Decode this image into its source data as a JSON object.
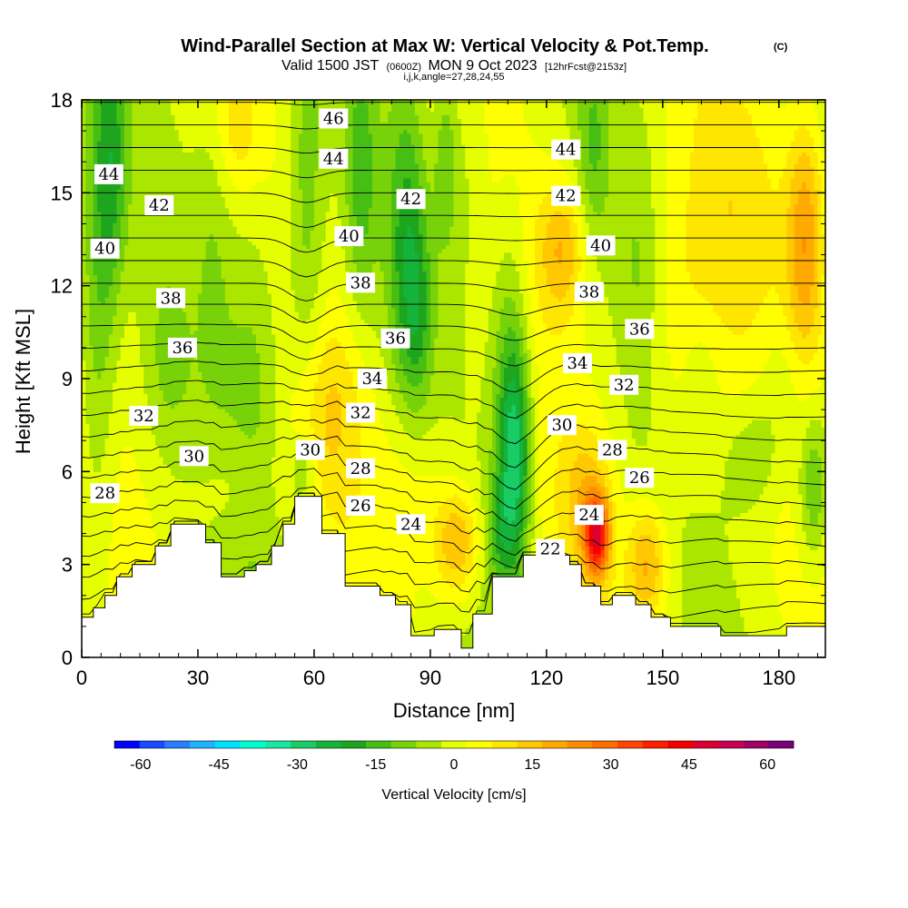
{
  "chart_data": {
    "type": "heatmap",
    "title": "Wind-Parallel Section at Max W: Vertical Velocity & Pot.Temp.",
    "title_mark": "(C)",
    "subtitle_parts": [
      "Valid 1500 JST",
      "(0600Z)",
      "MON 9 Oct 2023",
      "[12hrFcst@2153z]"
    ],
    "subtitle2": "i,j,k,angle=27,28,24,55",
    "xlabel": "Distance [nm]",
    "ylabel": "Height [Kft MSL]",
    "xlim": [
      0,
      192
    ],
    "ylim": [
      0,
      18
    ],
    "xticks": [
      0,
      30,
      60,
      90,
      120,
      150,
      180
    ],
    "yticks": [
      0,
      3,
      6,
      9,
      12,
      15,
      18
    ],
    "colorbar": {
      "label": "Vertical Velocity [cm/s]",
      "ticks": [
        -60,
        -45,
        -30,
        -15,
        0,
        15,
        30,
        45,
        60
      ],
      "tick_labels": [
        "-60",
        "-45",
        "-30",
        "-15",
        "0",
        "15",
        "30",
        "45",
        "60"
      ],
      "range": [
        -65,
        65
      ],
      "step": 5,
      "colors": [
        "#0000ff",
        "#1a4cff",
        "#2a7fff",
        "#20b2ff",
        "#00e0ff",
        "#00ffd0",
        "#19e6a0",
        "#19cc66",
        "#14b43c",
        "#1ea51e",
        "#46be14",
        "#78d20a",
        "#aae600",
        "#e6ff00",
        "#ffff00",
        "#ffe600",
        "#ffc800",
        "#ffaa00",
        "#ff8c00",
        "#ff6e00",
        "#ff4600",
        "#ff1e00",
        "#f50000",
        "#dc0032",
        "#c80050",
        "#a00064",
        "#780078"
      ]
    },
    "terrain": [
      [
        0,
        1.3
      ],
      [
        3,
        1.3
      ],
      [
        3,
        1.6
      ],
      [
        6,
        1.6
      ],
      [
        6,
        2.0
      ],
      [
        9,
        2.0
      ],
      [
        9,
        2.6
      ],
      [
        13,
        2.6
      ],
      [
        13,
        3.0
      ],
      [
        19,
        3.0
      ],
      [
        19,
        3.6
      ],
      [
        23,
        3.6
      ],
      [
        23,
        4.3
      ],
      [
        32,
        4.3
      ],
      [
        32,
        3.7
      ],
      [
        36,
        3.7
      ],
      [
        36,
        2.6
      ],
      [
        42,
        2.6
      ],
      [
        42,
        2.8
      ],
      [
        45,
        2.8
      ],
      [
        45,
        3.0
      ],
      [
        49,
        3.0
      ],
      [
        49,
        3.6
      ],
      [
        52,
        3.6
      ],
      [
        52,
        4.3
      ],
      [
        55,
        4.3
      ],
      [
        55,
        5.2
      ],
      [
        62,
        5.2
      ],
      [
        62,
        4.0
      ],
      [
        68,
        4.0
      ],
      [
        68,
        2.3
      ],
      [
        77,
        2.3
      ],
      [
        77,
        2.0
      ],
      [
        81,
        2.0
      ],
      [
        81,
        1.7
      ],
      [
        85,
        1.7
      ],
      [
        85,
        0.7
      ],
      [
        91,
        0.7
      ],
      [
        91,
        0.9
      ],
      [
        98,
        0.9
      ],
      [
        98,
        0.3
      ],
      [
        101,
        0.3
      ],
      [
        101,
        1.4
      ],
      [
        106,
        1.4
      ],
      [
        106,
        2.6
      ],
      [
        114,
        2.6
      ],
      [
        114,
        3.3
      ],
      [
        126,
        3.3
      ],
      [
        126,
        3.0
      ],
      [
        129,
        3.0
      ],
      [
        129,
        2.3
      ],
      [
        134,
        2.3
      ],
      [
        134,
        1.7
      ],
      [
        137,
        1.7
      ],
      [
        137,
        2.0
      ],
      [
        143,
        2.0
      ],
      [
        143,
        1.7
      ],
      [
        147,
        1.7
      ],
      [
        147,
        1.3
      ],
      [
        152,
        1.3
      ],
      [
        152,
        1.0
      ],
      [
        165,
        1.0
      ],
      [
        165,
        0.7
      ],
      [
        182,
        0.7
      ],
      [
        182,
        1.0
      ],
      [
        192,
        1.0
      ]
    ],
    "potential_temperature_contour_labels": [
      {
        "label": "46",
        "x": 65,
        "y": 17.4
      },
      {
        "label": "44",
        "x": 7,
        "y": 15.6
      },
      {
        "label": "44",
        "x": 65,
        "y": 16.1
      },
      {
        "label": "44",
        "x": 125,
        "y": 16.4
      },
      {
        "label": "42",
        "x": 20,
        "y": 14.6
      },
      {
        "label": "42",
        "x": 85,
        "y": 14.8
      },
      {
        "label": "42",
        "x": 125,
        "y": 14.9
      },
      {
        "label": "40",
        "x": 6,
        "y": 13.2
      },
      {
        "label": "40",
        "x": 69,
        "y": 13.6
      },
      {
        "label": "40",
        "x": 134,
        "y": 13.3
      },
      {
        "label": "38",
        "x": 23,
        "y": 11.6
      },
      {
        "label": "38",
        "x": 72,
        "y": 12.1
      },
      {
        "label": "38",
        "x": 131,
        "y": 11.8
      },
      {
        "label": "36",
        "x": 26,
        "y": 10.0
      },
      {
        "label": "36",
        "x": 81,
        "y": 10.3
      },
      {
        "label": "36",
        "x": 144,
        "y": 10.6
      },
      {
        "label": "34",
        "x": 75,
        "y": 9.0
      },
      {
        "label": "34",
        "x": 128,
        "y": 9.5
      },
      {
        "label": "32",
        "x": 16,
        "y": 7.8
      },
      {
        "label": "32",
        "x": 72,
        "y": 7.9
      },
      {
        "label": "32",
        "x": 140,
        "y": 8.8
      },
      {
        "label": "30",
        "x": 29,
        "y": 6.5
      },
      {
        "label": "30",
        "x": 59,
        "y": 6.7
      },
      {
        "label": "30",
        "x": 124,
        "y": 7.5
      },
      {
        "label": "28",
        "x": 6,
        "y": 5.3
      },
      {
        "label": "28",
        "x": 72,
        "y": 6.1
      },
      {
        "label": "28",
        "x": 137,
        "y": 6.7
      },
      {
        "label": "26",
        "x": 72,
        "y": 4.9
      },
      {
        "label": "26",
        "x": 144,
        "y": 5.8
      },
      {
        "label": "24",
        "x": 85,
        "y": 4.3
      },
      {
        "label": "24",
        "x": 131,
        "y": 4.6
      },
      {
        "label": "22",
        "x": 121,
        "y": 3.5
      }
    ]
  }
}
